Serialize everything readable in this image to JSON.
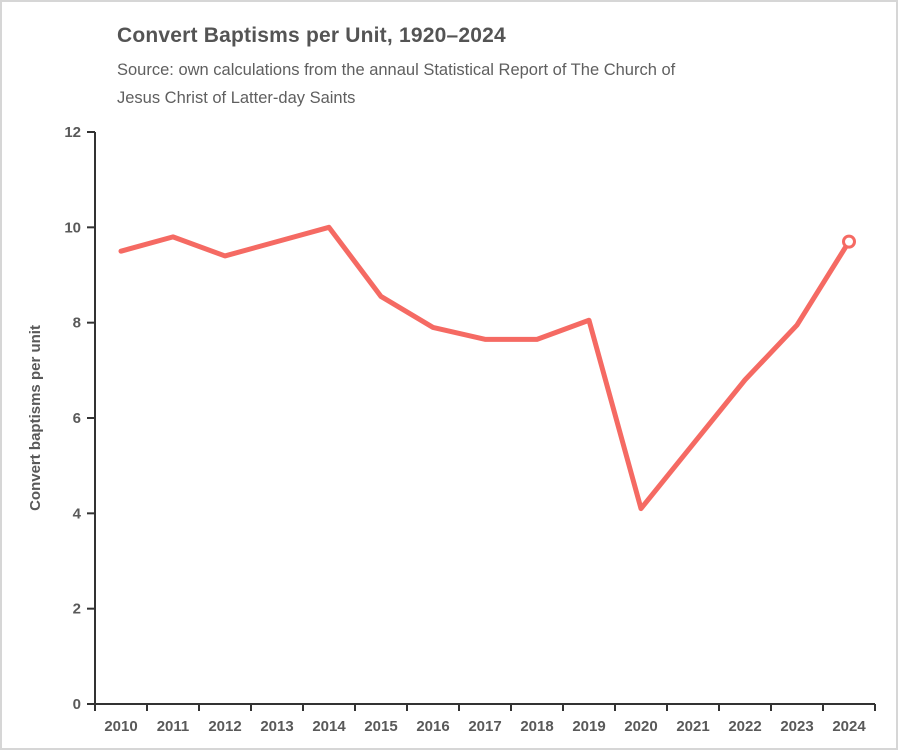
{
  "header": {
    "title": "Convert Baptisms per Unit, 1920–2024",
    "subtitle_line1": "Source: own calculations from the annaul Statistical Report of The Church of",
    "subtitle_line2": "Jesus Christ of Latter-day Saints"
  },
  "chart_data": {
    "type": "line",
    "title": "Convert Baptisms per Unit, 1920–2024",
    "subtitle": "Source: own calculations from the annaul Statistical Report of The Church of Jesus Christ of Latter-day Saints",
    "xlabel": "",
    "ylabel": "Convert baptisms per unit",
    "categories": [
      "2010",
      "2011",
      "2012",
      "2013",
      "2014",
      "2015",
      "2016",
      "2017",
      "2018",
      "2019",
      "2020",
      "2021",
      "2022",
      "2023",
      "2024"
    ],
    "series": [
      {
        "name": "Convert baptisms per unit",
        "values": [
          9.5,
          9.8,
          9.4,
          9.7,
          10.0,
          8.55,
          7.9,
          7.65,
          7.65,
          8.05,
          4.1,
          5.45,
          6.8,
          7.95,
          9.7
        ]
      }
    ],
    "ylim": [
      0,
      12
    ],
    "yticks": [
      0,
      2,
      4,
      6,
      8,
      10,
      12
    ],
    "grid": false,
    "legend_position": "none",
    "last_point_marker": "open-circle",
    "colors": {
      "line": "#f56a63",
      "axis": "#333333",
      "tick_label": "#595959",
      "title": "#545454",
      "subtitle": "#5f5f5f",
      "marker_fill": "#ffffff"
    }
  }
}
